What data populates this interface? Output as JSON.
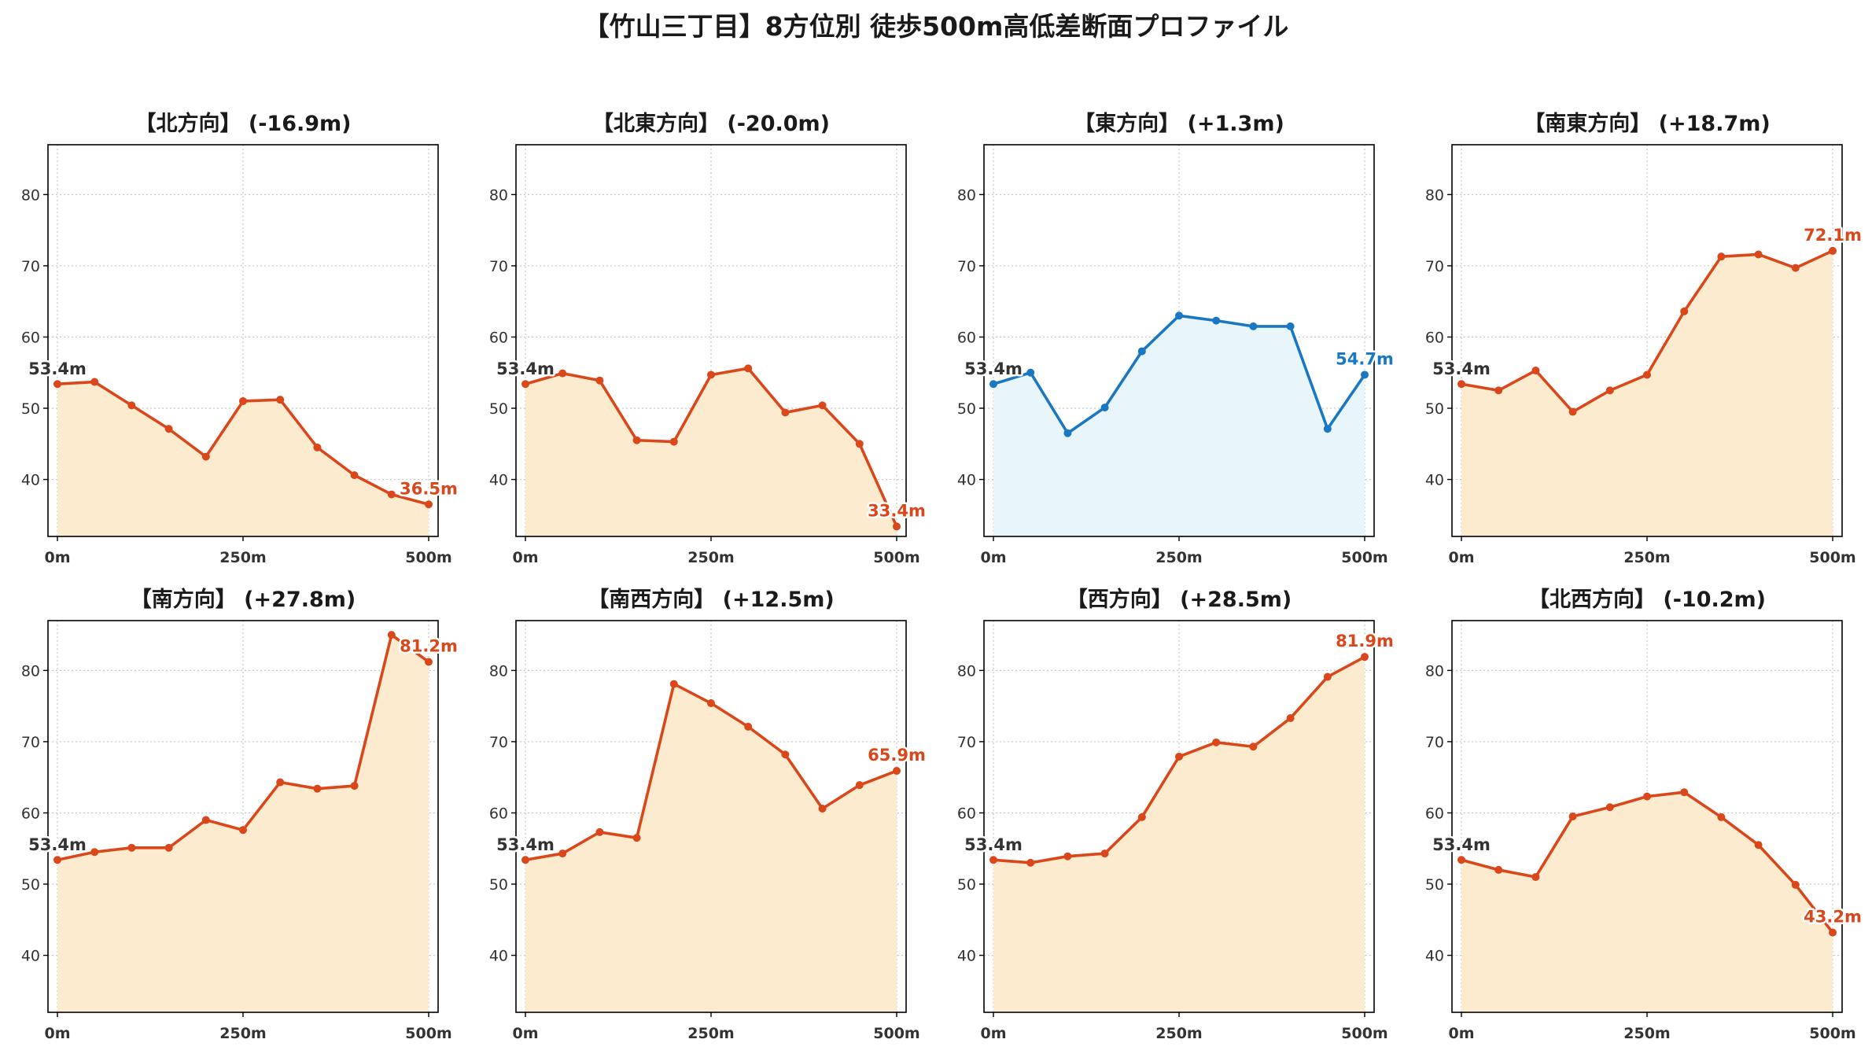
{
  "figure": {
    "title": "【竹山三丁目】8方位別 徒歩500m高低差断面プロファイル"
  },
  "colors": {
    "descent_line": "#d9471a",
    "ascent_fill": "#fdebd0",
    "flat_line": "#1a78c2",
    "flat_fill": "#e8f5fb",
    "start_label": "#333333",
    "grid": "#c8c8c8"
  },
  "chart_data": [
    {
      "type": "area",
      "title": "【北方向】 (-16.9m)",
      "x": [
        0,
        50,
        100,
        150,
        200,
        250,
        300,
        350,
        400,
        450,
        500
      ],
      "values": [
        53.4,
        53.7,
        50.4,
        47.1,
        43.2,
        51.0,
        51.2,
        44.5,
        40.6,
        37.9,
        36.5
      ],
      "ylim": [
        32,
        87
      ],
      "yticks": [
        40,
        50,
        60,
        70,
        80
      ],
      "xticks": [
        0,
        250,
        500
      ],
      "xtick_labels": [
        "0m",
        "250m",
        "500m"
      ],
      "start_label": "53.4m",
      "end_label": "36.5m",
      "style": "orange",
      "grid": true
    },
    {
      "type": "area",
      "title": "【北東方向】 (-20.0m)",
      "x": [
        0,
        50,
        100,
        150,
        200,
        250,
        300,
        350,
        400,
        450,
        500
      ],
      "values": [
        53.4,
        54.9,
        53.9,
        45.5,
        45.3,
        54.7,
        55.6,
        49.4,
        50.4,
        45.0,
        33.4
      ],
      "ylim": [
        32,
        87
      ],
      "yticks": [
        40,
        50,
        60,
        70,
        80
      ],
      "xticks": [
        0,
        250,
        500
      ],
      "xtick_labels": [
        "0m",
        "250m",
        "500m"
      ],
      "start_label": "53.4m",
      "end_label": "33.4m",
      "style": "orange",
      "grid": true
    },
    {
      "type": "area",
      "title": "【東方向】 (+1.3m)",
      "x": [
        0,
        50,
        100,
        150,
        200,
        250,
        300,
        350,
        400,
        450,
        500
      ],
      "values": [
        53.4,
        55.0,
        46.5,
        50.1,
        58.0,
        63.0,
        62.3,
        61.5,
        61.5,
        47.1,
        54.7
      ],
      "ylim": [
        32,
        87
      ],
      "yticks": [
        40,
        50,
        60,
        70,
        80
      ],
      "xticks": [
        0,
        250,
        500
      ],
      "xtick_labels": [
        "0m",
        "250m",
        "500m"
      ],
      "start_label": "53.4m",
      "end_label": "54.7m",
      "style": "blue",
      "grid": true
    },
    {
      "type": "area",
      "title": "【南東方向】 (+18.7m)",
      "x": [
        0,
        50,
        100,
        150,
        200,
        250,
        300,
        350,
        400,
        450,
        500
      ],
      "values": [
        53.4,
        52.5,
        55.3,
        49.5,
        52.5,
        54.7,
        63.6,
        71.3,
        71.6,
        69.7,
        72.1
      ],
      "ylim": [
        32,
        87
      ],
      "yticks": [
        40,
        50,
        60,
        70,
        80
      ],
      "xticks": [
        0,
        250,
        500
      ],
      "xtick_labels": [
        "0m",
        "250m",
        "500m"
      ],
      "start_label": "53.4m",
      "end_label": "72.1m",
      "style": "orange",
      "grid": true
    },
    {
      "type": "area",
      "title": "【南方向】 (+27.8m)",
      "x": [
        0,
        50,
        100,
        150,
        200,
        250,
        300,
        350,
        400,
        450,
        500
      ],
      "values": [
        53.4,
        54.5,
        55.1,
        55.1,
        59.0,
        57.6,
        64.3,
        63.4,
        63.8,
        85.0,
        81.2
      ],
      "ylim": [
        32,
        87
      ],
      "yticks": [
        40,
        50,
        60,
        70,
        80
      ],
      "xticks": [
        0,
        250,
        500
      ],
      "xtick_labels": [
        "0m",
        "250m",
        "500m"
      ],
      "start_label": "53.4m",
      "end_label": "81.2m",
      "style": "orange",
      "grid": true
    },
    {
      "type": "area",
      "title": "【南西方向】 (+12.5m)",
      "x": [
        0,
        50,
        100,
        150,
        200,
        250,
        300,
        350,
        400,
        450,
        500
      ],
      "values": [
        53.4,
        54.3,
        57.3,
        56.5,
        78.1,
        75.4,
        72.1,
        68.2,
        60.6,
        63.9,
        65.9
      ],
      "ylim": [
        32,
        87
      ],
      "yticks": [
        40,
        50,
        60,
        70,
        80
      ],
      "xticks": [
        0,
        250,
        500
      ],
      "xtick_labels": [
        "0m",
        "250m",
        "500m"
      ],
      "start_label": "53.4m",
      "end_label": "65.9m",
      "style": "orange",
      "grid": true
    },
    {
      "type": "area",
      "title": "【西方向】 (+28.5m)",
      "x": [
        0,
        50,
        100,
        150,
        200,
        250,
        300,
        350,
        400,
        450,
        500
      ],
      "values": [
        53.4,
        53.0,
        53.9,
        54.3,
        59.4,
        67.9,
        69.9,
        69.3,
        73.3,
        79.1,
        81.9
      ],
      "ylim": [
        32,
        87
      ],
      "yticks": [
        40,
        50,
        60,
        70,
        80
      ],
      "xticks": [
        0,
        250,
        500
      ],
      "xtick_labels": [
        "0m",
        "250m",
        "500m"
      ],
      "start_label": "53.4m",
      "end_label": "81.9m",
      "style": "orange",
      "grid": true
    },
    {
      "type": "area",
      "title": "【北西方向】 (-10.2m)",
      "x": [
        0,
        50,
        100,
        150,
        200,
        250,
        300,
        350,
        400,
        450,
        500
      ],
      "values": [
        53.4,
        52.0,
        51.0,
        59.5,
        60.8,
        62.3,
        62.9,
        59.4,
        55.5,
        49.9,
        43.2
      ],
      "ylim": [
        32,
        87
      ],
      "yticks": [
        40,
        50,
        60,
        70,
        80
      ],
      "xticks": [
        0,
        250,
        500
      ],
      "xtick_labels": [
        "0m",
        "250m",
        "500m"
      ],
      "start_label": "53.4m",
      "end_label": "43.2m",
      "style": "orange",
      "grid": true
    }
  ]
}
